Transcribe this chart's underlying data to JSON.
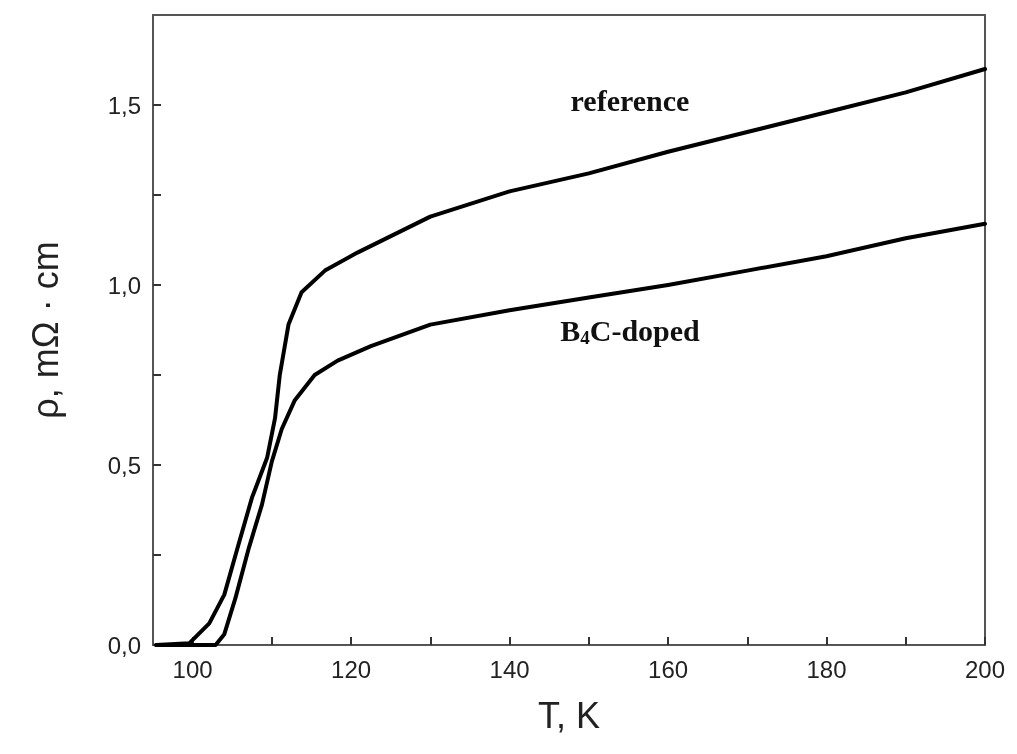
{
  "chart_data": {
    "type": "line",
    "xlabel": "T, K",
    "ylabel": "ρ, mΩ · cm",
    "xlim": [
      95,
      200
    ],
    "ylim": [
      0,
      1.75
    ],
    "xticks": [
      100,
      {
        "value": 110,
        "label": null
      },
      120,
      {
        "value": 130,
        "label": null
      },
      140,
      {
        "value": 150,
        "label": null
      },
      160,
      {
        "value": 170,
        "label": null
      },
      180,
      {
        "value": 190,
        "label": null
      },
      200
    ],
    "yticks": [
      {
        "value": 0,
        "label": "0,0"
      },
      {
        "value": 0.25,
        "label": null
      },
      {
        "value": 0.5,
        "label": "0,5"
      },
      {
        "value": 0.75,
        "label": null
      },
      {
        "value": 1,
        "label": "1,0"
      },
      {
        "value": 1.25,
        "label": null
      },
      {
        "value": 1.5,
        "label": "1,5"
      }
    ],
    "grid": false,
    "marker": "none",
    "line_style": "solid",
    "series": [
      {
        "color": "#000000",
        "x": [
          95.4,
          99.6,
          102.1,
          104,
          105.8,
          107.5,
          109.4,
          110.4,
          111,
          112.1,
          113.75,
          116.7,
          120.8,
          130,
          140,
          150,
          160,
          170,
          180,
          190,
          200
        ],
        "values": [
          0,
          0.005,
          0.06,
          0.14,
          0.28,
          0.41,
          0.52,
          0.63,
          0.75,
          0.89,
          0.98,
          1.04,
          1.09,
          1.19,
          1.26,
          1.31,
          1.37,
          1.425,
          1.48,
          1.535,
          1.6
        ]
      },
      {
        "color": "#000000",
        "x": [
          95.4,
          102.9,
          104,
          105.4,
          107.1,
          108.75,
          110,
          111.25,
          112.9,
          115.4,
          118.3,
          122.5,
          126.25,
          130,
          140,
          150,
          160,
          170,
          180,
          190,
          200
        ],
        "values": [
          0,
          0,
          0.03,
          0.13,
          0.27,
          0.39,
          0.51,
          0.6,
          0.68,
          0.75,
          0.79,
          0.83,
          0.86,
          0.89,
          0.93,
          0.965,
          1,
          1.04,
          1.08,
          1.13,
          1.17
        ]
      }
    ],
    "annotations": [
      "reference",
      "B$_{4}$C-doped"
    ]
  }
}
